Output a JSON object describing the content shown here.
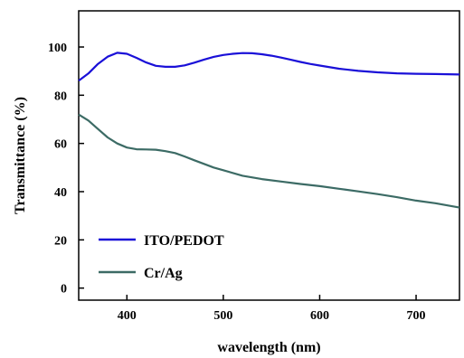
{
  "chart_data": {
    "type": "line",
    "xlabel": "wavelength (nm)",
    "ylabel": "Transmittance (%)",
    "xlim": [
      350,
      745
    ],
    "ylim": [
      -5,
      115
    ],
    "xticks": [
      400,
      500,
      600,
      700
    ],
    "yticks": [
      0,
      20,
      40,
      60,
      80,
      100
    ],
    "grid": false,
    "legend_position": "bottom-left",
    "series": [
      {
        "name": "ITO/PEDOT",
        "color": "#1a10d8",
        "x": [
          350,
          360,
          370,
          380,
          390,
          400,
          410,
          420,
          430,
          440,
          450,
          460,
          470,
          480,
          490,
          500,
          510,
          520,
          530,
          540,
          550,
          560,
          570,
          580,
          590,
          600,
          620,
          640,
          660,
          680,
          700,
          720,
          745
        ],
        "y": [
          86,
          89,
          93,
          96,
          97.6,
          97.2,
          95.5,
          93.6,
          92.2,
          91.8,
          91.8,
          92.4,
          93.5,
          94.8,
          95.9,
          96.7,
          97.2,
          97.5,
          97.4,
          97,
          96.4,
          95.6,
          94.7,
          93.8,
          93,
          92.3,
          91,
          90.1,
          89.5,
          89.1,
          88.9,
          88.8,
          88.6
        ]
      },
      {
        "name": "Cr/Ag",
        "color": "#3c6b65",
        "x": [
          350,
          360,
          370,
          380,
          390,
          400,
          410,
          420,
          430,
          440,
          450,
          460,
          470,
          480,
          490,
          500,
          520,
          540,
          560,
          580,
          600,
          620,
          640,
          660,
          680,
          700,
          720,
          745
        ],
        "y": [
          72,
          69.5,
          66,
          62.5,
          60,
          58.3,
          57.6,
          57.5,
          57.4,
          56.8,
          56,
          54.6,
          53,
          51.5,
          50,
          48.9,
          46.6,
          45.2,
          44.2,
          43.2,
          42.3,
          41.2,
          40.1,
          39,
          37.7,
          36.3,
          35.2,
          33.4
        ]
      }
    ]
  }
}
